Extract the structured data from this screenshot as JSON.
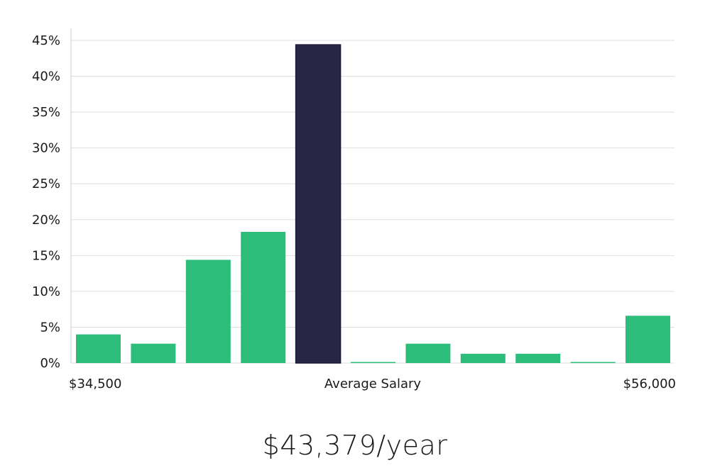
{
  "chart_data": {
    "type": "bar",
    "values": [
      4,
      2.7,
      14.4,
      18.3,
      44.4,
      0.1,
      2.7,
      1.3,
      1.3,
      0.1,
      6.6
    ],
    "highlight_index": 4,
    "ylim": [
      0,
      45
    ],
    "yticks": [
      "0%",
      "5%",
      "10%",
      "15%",
      "20%",
      "25%",
      "30%",
      "35%",
      "40%",
      "45%"
    ],
    "ytick_values": [
      0,
      5,
      10,
      15,
      20,
      25,
      30,
      35,
      40,
      45
    ],
    "x_labels": {
      "left": "$34,500",
      "center": "Average Salary",
      "right": "$56,000"
    },
    "grid": true,
    "colors": {
      "bar": "#2bbd79",
      "highlight": "#282645",
      "grid": "#dedede",
      "axis": "#cfcfcf"
    }
  },
  "summary": {
    "average_salary": "$43,379/year"
  }
}
